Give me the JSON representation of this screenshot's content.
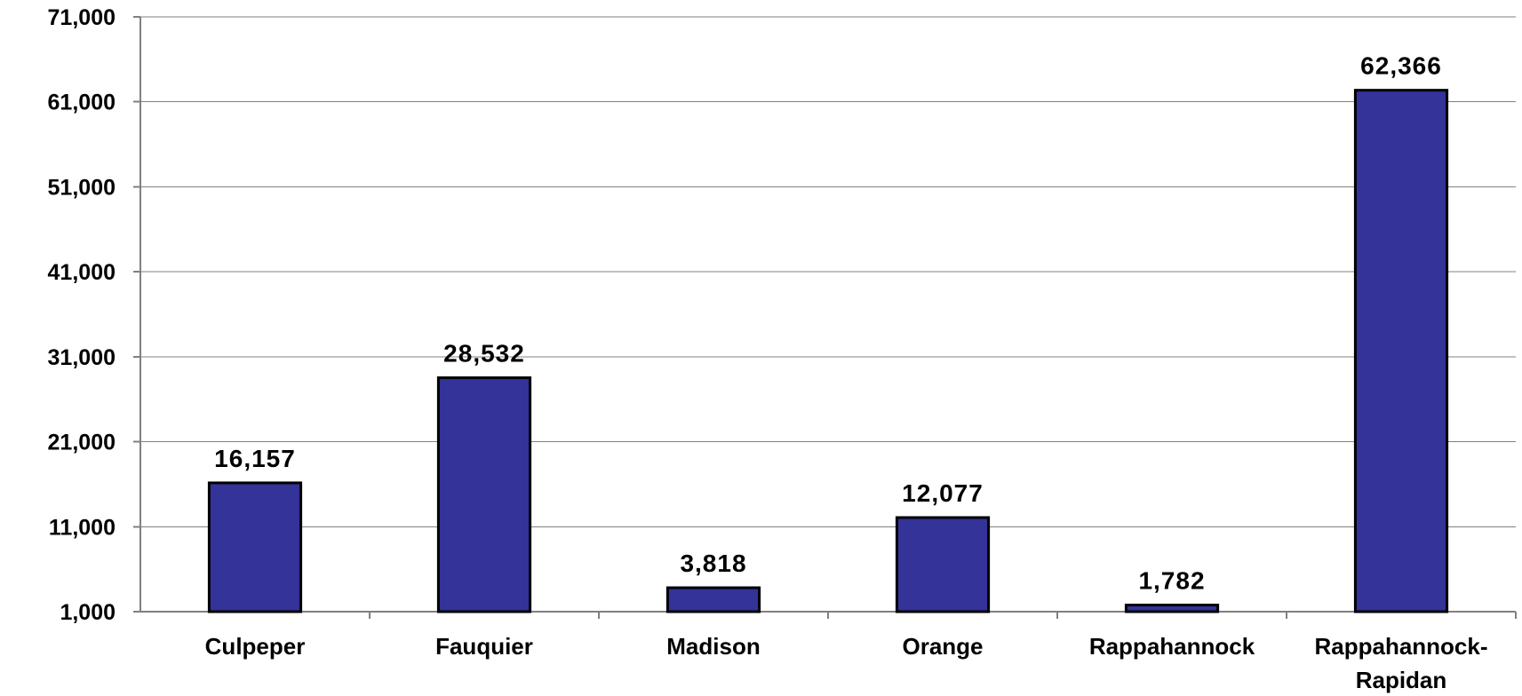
{
  "chart_data": {
    "type": "bar",
    "categories": [
      "Culpeper",
      "Fauquier",
      "Madison",
      "Orange",
      "Rappahannock",
      "Rappahannock-Rapidan"
    ],
    "category_lines": [
      [
        "Culpeper"
      ],
      [
        "Fauquier"
      ],
      [
        "Madison"
      ],
      [
        "Orange"
      ],
      [
        "Rappahannock"
      ],
      [
        "Rappahannock-",
        "Rapidan"
      ]
    ],
    "values": [
      16157,
      28532,
      3818,
      12077,
      1782,
      62366
    ],
    "data_labels": [
      "16,157",
      "28,532",
      "3,818",
      "12,077",
      "1,782",
      "62,366"
    ],
    "yticks": [
      "1,000",
      "11,000",
      "21,000",
      "31,000",
      "41,000",
      "51,000",
      "61,000",
      "71,000"
    ],
    "ylim": [
      1000,
      71000
    ],
    "grid": true,
    "legend": "none",
    "title": "",
    "xlabel": "",
    "ylabel": "",
    "colors": {
      "bar_fill": "#333399",
      "bar_stroke": "#000000",
      "grid": "#808080"
    }
  }
}
